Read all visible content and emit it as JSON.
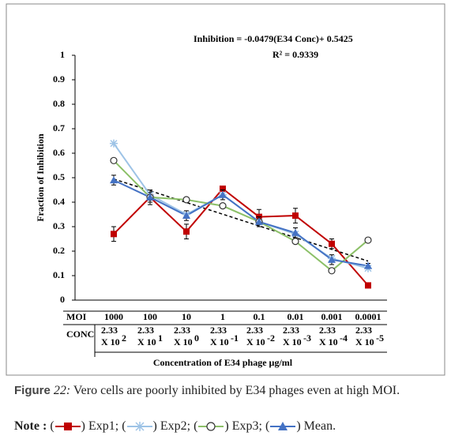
{
  "chart_data": {
    "type": "line",
    "equation_label": "Inhibition  = -0.0479(E34 Conc)+ 0.5425",
    "r2_label": "R² = 0.9339",
    "trendline": {
      "slope": -0.0479,
      "intercept": 0.5425,
      "color": "#000000"
    },
    "y_label": "Fraction of Inhibition",
    "x_label": "Concentration of E34 phage µg/ml",
    "row_labels": [
      "MOI",
      "CONC"
    ],
    "categories": [
      "1000",
      "100",
      "10",
      "1",
      "0.1",
      "0.01",
      "0.001",
      "0.0001"
    ],
    "conc": [
      {
        "mantissa": "2.33",
        "base": "X 10",
        "power": "2"
      },
      {
        "mantissa": "2.33",
        "base": "X 10",
        "power": "1"
      },
      {
        "mantissa": "2.33",
        "base": "X 10",
        "power": "0"
      },
      {
        "mantissa": "2.33",
        "base": "X 10",
        "power": "-1"
      },
      {
        "mantissa": "2.33",
        "base": "X 10",
        "power": "-2"
      },
      {
        "mantissa": "2.33",
        "base": "X 10",
        "power": "-3"
      },
      {
        "mantissa": "2.33",
        "base": "X 10",
        "power": "-4"
      },
      {
        "mantissa": "2.33",
        "base": "X 10",
        "power": "-5"
      }
    ],
    "series": [
      {
        "name": "Exp1",
        "color": "#c00000",
        "marker": "square",
        "values": [
          0.27,
          0.42,
          0.28,
          0.455,
          0.34,
          0.345,
          0.23,
          0.06
        ],
        "errors": [
          0.03,
          0.02,
          0.03,
          0.01,
          0.03,
          0.03,
          0.02,
          0.01
        ]
      },
      {
        "name": "Exp2",
        "color": "#9dc3e6",
        "marker": "asterisk",
        "values": [
          0.64,
          0.43,
          0.35,
          0.43,
          0.32,
          0.27,
          0.17,
          0.13
        ]
      },
      {
        "name": "Exp3",
        "color": "#8cc068",
        "marker": "circle",
        "values": [
          0.57,
          0.42,
          0.41,
          0.385,
          0.32,
          0.24,
          0.12,
          0.245
        ]
      },
      {
        "name": "Mean",
        "color": "#4472c4",
        "marker": "triangle",
        "values": [
          0.49,
          0.42,
          0.345,
          0.43,
          0.32,
          0.275,
          0.165,
          0.14
        ],
        "errors": [
          0.02,
          0.03,
          0.02,
          0.02,
          0.02,
          0.02,
          0.02,
          0.01
        ]
      }
    ],
    "ylim": [
      0,
      1
    ],
    "yticks": [
      0,
      0.1,
      0.2,
      0.3,
      0.4,
      0.5,
      0.6,
      0.7,
      0.8,
      0.9,
      1
    ]
  },
  "caption": {
    "figure": "Figure",
    "number": "22:",
    "text": "Vero cells are poorly inhibited by E34 phages even at high MOI.",
    "note": "Note :",
    "brackets": [
      "(",
      ")"
    ],
    "separator": ";",
    "end": "."
  }
}
